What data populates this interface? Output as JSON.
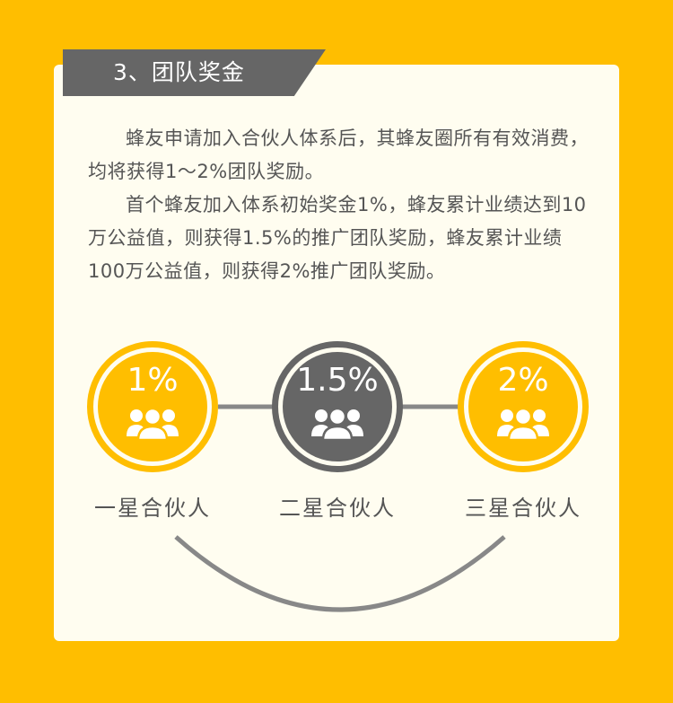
{
  "section": {
    "title": "3、团队奖金"
  },
  "paragraphs": [
    "蜂友申请加入合伙人体系后，其蜂友圈所有有效消费，均将获得1～2%团队奖励。",
    "首个蜂友加入体系初始奖金1%，蜂友累计业绩达到10万公益值，则获得1.5%的推广团队奖励，蜂友累计业绩100万公益值，则获得2%推广团队奖励。"
  ],
  "tiers": [
    {
      "percent": "1%",
      "label": "一星合伙人",
      "icon": "group-people-icon",
      "color": "#FFBE00"
    },
    {
      "percent": "1.5%",
      "label": "二星合伙人",
      "icon": "group-people-icon",
      "color": "#666666"
    },
    {
      "percent": "2%",
      "label": "三星合伙人",
      "icon": "group-people-icon",
      "color": "#FFBE00"
    }
  ],
  "colors": {
    "background": "#FFBE00",
    "card": "#FFFDF0",
    "accent_gray": "#666666",
    "text": "#555555"
  }
}
